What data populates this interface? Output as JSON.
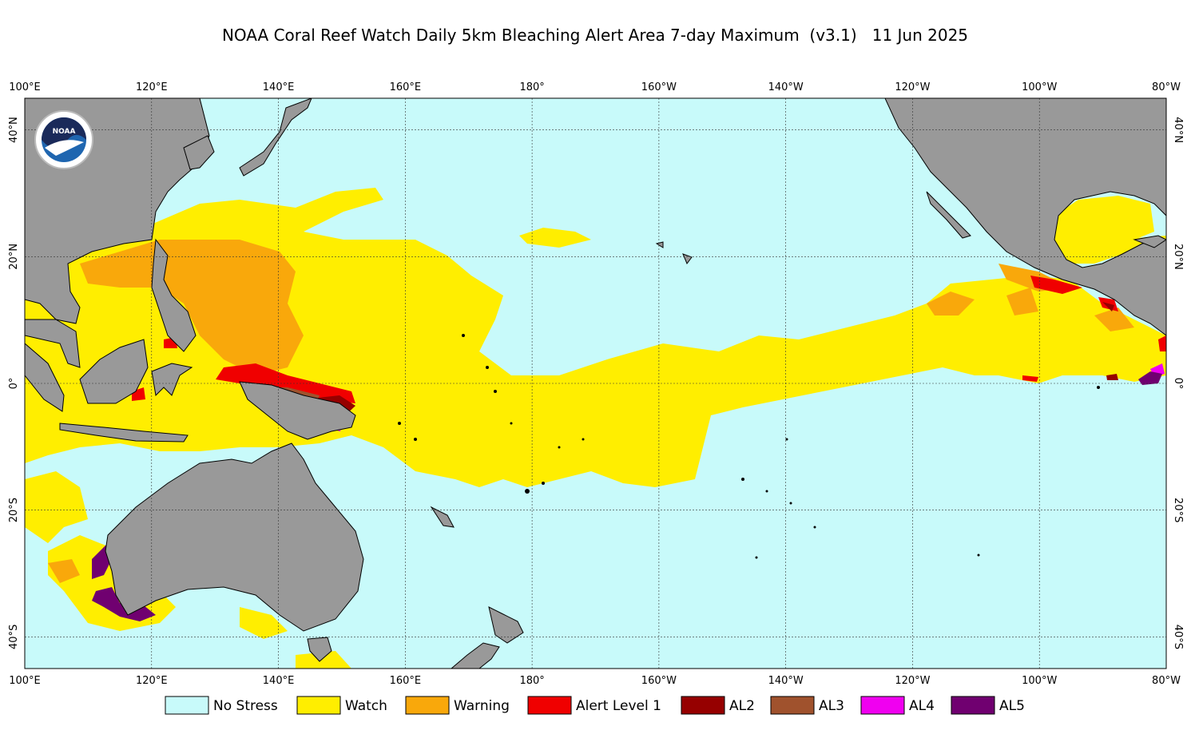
{
  "map": {
    "title": "NOAA Coral Reef Watch Daily 5km Bleaching Alert Area 7-day Maximum  (v3.1)   11 Jun 2025",
    "logo_text": "NOAA",
    "lonlim": [
      100,
      280
    ],
    "latlim": [
      -45,
      45
    ],
    "grid": true,
    "lon_ticks": [
      {
        "value": 100,
        "label": "100°E"
      },
      {
        "value": 120,
        "label": "120°E"
      },
      {
        "value": 140,
        "label": "140°E"
      },
      {
        "value": 160,
        "label": "160°E"
      },
      {
        "value": 180,
        "label": "180°"
      },
      {
        "value": 200,
        "label": "160°W"
      },
      {
        "value": 220,
        "label": "140°W"
      },
      {
        "value": 240,
        "label": "120°W"
      },
      {
        "value": 260,
        "label": "100°W"
      },
      {
        "value": 280,
        "label": "80°W"
      }
    ],
    "lat_ticks": [
      {
        "value": 40,
        "label": "40°N"
      },
      {
        "value": 20,
        "label": "20°N"
      },
      {
        "value": 0,
        "label": "0°"
      },
      {
        "value": -20,
        "label": "20°S"
      },
      {
        "value": -40,
        "label": "40°S"
      }
    ],
    "legend": [
      {
        "label": "No Stress",
        "color": "#c8fafa"
      },
      {
        "label": "Watch",
        "color": "#ffee00"
      },
      {
        "label": "Warning",
        "color": "#f9a80b"
      },
      {
        "label": "Alert Level 1",
        "color": "#f00000"
      },
      {
        "label": "AL2",
        "color": "#960000"
      },
      {
        "label": "AL3",
        "color": "#a0522d"
      },
      {
        "label": "AL4",
        "color": "#f000f0"
      },
      {
        "label": "AL5",
        "color": "#700070"
      }
    ]
  }
}
